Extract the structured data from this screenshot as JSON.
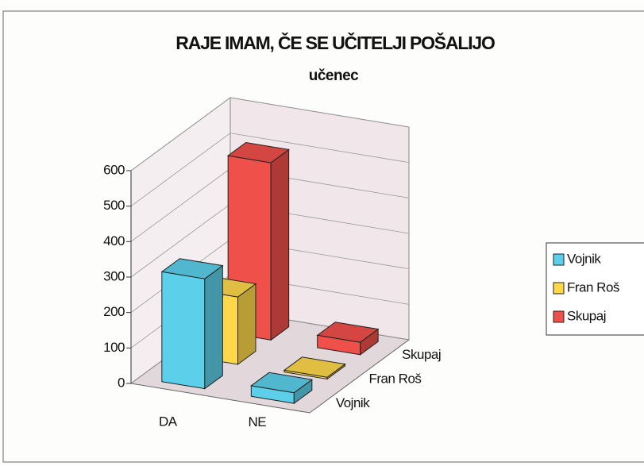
{
  "chart_data": {
    "type": "bar3d",
    "title": "RAJE IMAM, ČE SE UČITELJI POŠALIJO",
    "subtitle": "učenec",
    "categories": [
      "DA",
      "NE"
    ],
    "series": [
      {
        "name": "Vojnik",
        "color": "#5cd0ea",
        "values": [
          310,
          30
        ]
      },
      {
        "name": "Fran Roš",
        "color": "#ffd84a",
        "values": [
          190,
          5
        ]
      },
      {
        "name": "Skupaj",
        "color": "#f0504a",
        "values": [
          500,
          35
        ]
      }
    ],
    "ylim": [
      0,
      600
    ],
    "yticks": [
      0,
      100,
      200,
      300,
      400,
      500,
      600
    ],
    "grid": true,
    "legend": "right"
  }
}
